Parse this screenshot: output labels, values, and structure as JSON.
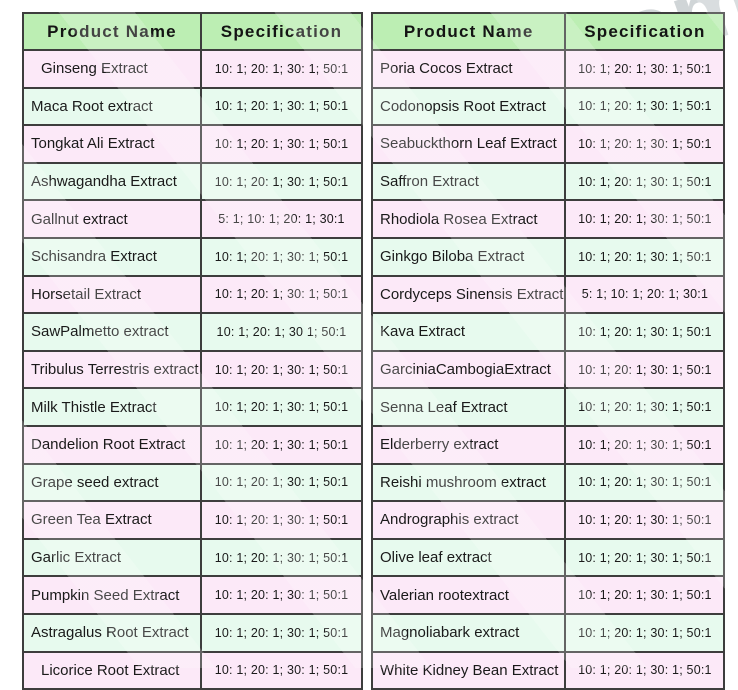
{
  "watermark": {
    "corner_text": "com"
  },
  "colors": {
    "header_bg": "#bceeb3",
    "row_pink": "#fce9f8",
    "row_mint": "#e7faee",
    "border": "#3d3d3d",
    "text": "#1a1a1a"
  },
  "left_table": {
    "headers": {
      "product": "Product Name",
      "spec": "Specification"
    },
    "rows": [
      {
        "name": "Ginseng Extract",
        "spec": "10: 1; 20: 1; 30: 1; 50:1",
        "tint": "pink",
        "indent": true
      },
      {
        "name": "Maca Root extract",
        "spec": "10: 1; 20: 1; 30: 1; 50:1",
        "tint": "mint"
      },
      {
        "name": "Tongkat Ali Extract",
        "spec": "10: 1; 20: 1; 30: 1; 50:1",
        "tint": "pink"
      },
      {
        "name": "Ashwagandha Extract",
        "spec": "10: 1; 20: 1; 30: 1; 50:1",
        "tint": "mint"
      },
      {
        "name": "Gallnut extract",
        "spec": "5: 1; 10: 1; 20: 1; 30:1",
        "tint": "pink"
      },
      {
        "name": "Schisandra Extract",
        "spec": "10: 1; 20: 1; 30: 1; 50:1",
        "tint": "mint"
      },
      {
        "name": "Horsetail Extract",
        "spec": "10: 1; 20: 1; 30: 1; 50:1",
        "tint": "pink"
      },
      {
        "name": "SawPalmetto extract",
        "spec": "10: 1; 20: 1; 30  1; 50:1",
        "tint": "mint"
      },
      {
        "name": "Tribulus Terrestris extract",
        "spec": "10: 1; 20: 1; 30: 1; 50:1",
        "tint": "pink"
      },
      {
        "name": "Milk Thistle Extract",
        "spec": "10: 1; 20: 1; 30: 1; 50:1",
        "tint": "mint"
      },
      {
        "name": "Dandelion Root Extract",
        "spec": "10: 1; 20: 1; 30: 1; 50:1",
        "tint": "pink"
      },
      {
        "name": "Grape seed extract",
        "spec": "10: 1; 20: 1; 30: 1; 50:1",
        "tint": "mint"
      },
      {
        "name": "Green Tea Extract",
        "spec": "10: 1; 20: 1; 30: 1; 50:1",
        "tint": "pink"
      },
      {
        "name": "Garlic Extract",
        "spec": "10: 1; 20: 1; 30: 1; 50:1",
        "tint": "mint"
      },
      {
        "name": "Pumpkin Seed Extract",
        "spec": "10: 1; 20: 1; 30: 1; 50:1",
        "tint": "pink"
      },
      {
        "name": "Astragalus Root Extract",
        "spec": "10: 1; 20: 1; 30: 1; 50:1",
        "tint": "mint"
      },
      {
        "name": "Licorice Root Extract",
        "spec": "10: 1; 20: 1; 30: 1; 50:1",
        "tint": "pink",
        "indent": true
      }
    ]
  },
  "right_table": {
    "headers": {
      "product": "Product Name",
      "spec": "Specification"
    },
    "rows": [
      {
        "name": "Poria Cocos Extract",
        "spec": "10: 1; 20: 1; 30: 1; 50:1",
        "tint": "pink"
      },
      {
        "name": "Codonopsis Root Extract",
        "spec": "10: 1; 20: 1; 30: 1; 50:1",
        "tint": "mint"
      },
      {
        "name": "Seabuckthorn Leaf Extract",
        "spec": "10: 1; 20: 1; 30: 1; 50:1",
        "tint": "pink"
      },
      {
        "name": "Saffron Extract",
        "spec": "10: 1; 20: 1; 30: 1; 50:1",
        "tint": "mint"
      },
      {
        "name": "Rhodiola Rosea Extract",
        "spec": "10: 1; 20: 1; 30: 1; 50:1",
        "tint": "pink"
      },
      {
        "name": "Ginkgo Biloba Extract",
        "spec": "10: 1; 20: 1; 30: 1; 50:1",
        "tint": "mint"
      },
      {
        "name": "Cordyceps Sinensis Extract",
        "spec": "5: 1; 10: 1; 20: 1; 30:1",
        "tint": "pink"
      },
      {
        "name": "Kava Extract",
        "spec": "10: 1; 20: 1; 30: 1; 50:1",
        "tint": "mint"
      },
      {
        "name": "GarciniaCambogiaExtract",
        "spec": "10: 1; 20: 1; 30: 1; 50:1",
        "tint": "pink"
      },
      {
        "name": "Senna Leaf Extract",
        "spec": "10: 1; 20: 1; 30: 1; 50:1",
        "tint": "mint"
      },
      {
        "name": "Elderberry extract",
        "spec": "10: 1; 20: 1; 30: 1; 50:1",
        "tint": "pink"
      },
      {
        "name": "Reishi mushroom extract",
        "spec": "10: 1; 20: 1; 30: 1; 50:1",
        "tint": "mint"
      },
      {
        "name": "Andrographis extract",
        "spec": "10: 1; 20: 1; 30: 1; 50:1",
        "tint": "pink"
      },
      {
        "name": "Olive leaf extract",
        "spec": "10: 1; 20: 1; 30: 1; 50:1",
        "tint": "mint"
      },
      {
        "name": "Valerian rootextract",
        "spec": "10: 1; 20: 1; 30: 1; 50:1",
        "tint": "pink"
      },
      {
        "name": "Magnoliabark extract",
        "spec": "10: 1; 20: 1; 30: 1; 50:1",
        "tint": "mint"
      },
      {
        "name": "White Kidney Bean Extract",
        "spec": "10: 1; 20: 1; 30: 1; 50:1",
        "tint": "pink"
      }
    ]
  }
}
